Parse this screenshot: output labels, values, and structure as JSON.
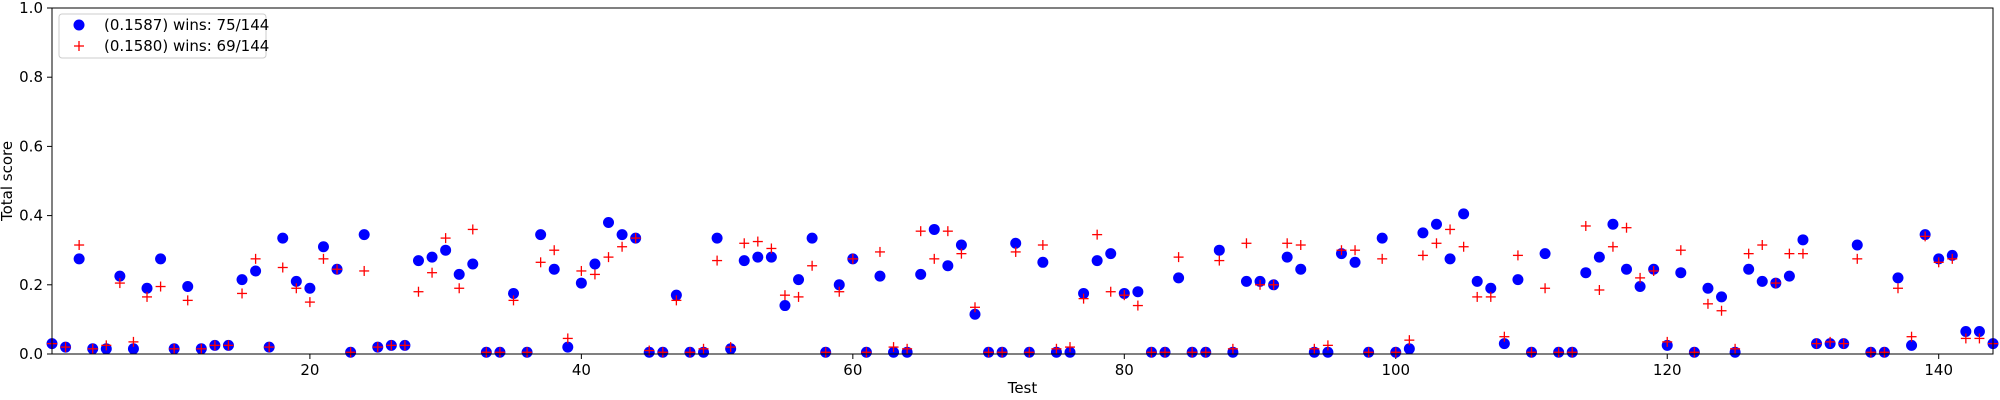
{
  "chart_data": {
    "type": "scatter",
    "title": "",
    "xlabel": "Test",
    "ylabel": "Total score",
    "xlim": [
      1,
      144
    ],
    "ylim": [
      0,
      1.0
    ],
    "xticks": [
      20,
      40,
      60,
      80,
      100,
      120,
      140
    ],
    "xtick_labels": [
      "20",
      "40",
      "60",
      "80",
      "100",
      "120",
      "140"
    ],
    "yticks": [
      0,
      0.2,
      0.4,
      0.6,
      0.8,
      1.0
    ],
    "ytick_labels": [
      "0.0",
      "0.2",
      "0.4",
      "0.6",
      "0.8",
      "1.0"
    ],
    "grid": false,
    "legend_position": "top-left",
    "series": [
      {
        "name": "(0.1587) wins: 75/144",
        "marker": "circle",
        "color": "#0000ff",
        "x": [
          1,
          2,
          3,
          4,
          5,
          6,
          7,
          8,
          9,
          10,
          11,
          12,
          13,
          14,
          15,
          16,
          17,
          18,
          19,
          20,
          21,
          22,
          23,
          24,
          25,
          26,
          27,
          28,
          29,
          30,
          31,
          32,
          33,
          34,
          35,
          36,
          37,
          38,
          39,
          40,
          41,
          42,
          43,
          44,
          45,
          46,
          47,
          48,
          49,
          50,
          51,
          52,
          53,
          54,
          55,
          56,
          57,
          58,
          59,
          60,
          61,
          62,
          63,
          64,
          65,
          66,
          67,
          68,
          69,
          70,
          71,
          72,
          73,
          74,
          75,
          76,
          77,
          78,
          79,
          80,
          81,
          82,
          83,
          84,
          85,
          86,
          87,
          88,
          89,
          90,
          91,
          92,
          93,
          94,
          95,
          96,
          97,
          98,
          99,
          100,
          101,
          102,
          103,
          104,
          105,
          106,
          107,
          108,
          109,
          110,
          111,
          112,
          113,
          114,
          115,
          116,
          117,
          118,
          119,
          120,
          121,
          122,
          123,
          124,
          125,
          126,
          127,
          128,
          129,
          130,
          131,
          132,
          133,
          134,
          135,
          136,
          137,
          138,
          139,
          140,
          141,
          142,
          143,
          144
        ],
        "y": [
          0.03,
          0.02,
          0.275,
          0.015,
          0.015,
          0.225,
          0.015,
          0.19,
          0.275,
          0.015,
          0.195,
          0.015,
          0.025,
          0.025,
          0.215,
          0.24,
          0.02,
          0.335,
          0.21,
          0.19,
          0.31,
          0.245,
          0.005,
          0.345,
          0.02,
          0.025,
          0.025,
          0.27,
          0.28,
          0.3,
          0.23,
          0.26,
          0.005,
          0.005,
          0.175,
          0.005,
          0.345,
          0.245,
          0.02,
          0.205,
          0.26,
          0.38,
          0.345,
          0.335,
          0.005,
          0.005,
          0.17,
          0.005,
          0.005,
          0.335,
          0.015,
          0.27,
          0.28,
          0.28,
          0.14,
          0.215,
          0.335,
          0.005,
          0.2,
          0.275,
          0.005,
          0.225,
          0.005,
          0.005,
          0.23,
          0.36,
          0.255,
          0.315,
          0.115,
          0.005,
          0.005,
          0.32,
          0.005,
          0.265,
          0.005,
          0.005,
          0.175,
          0.27,
          0.29,
          0.175,
          0.18,
          0.005,
          0.005,
          0.22,
          0.005,
          0.005,
          0.3,
          0.005,
          0.21,
          0.21,
          0.2,
          0.28,
          0.245,
          0.005,
          0.005,
          0.29,
          0.265,
          0.005,
          0.335,
          0.005,
          0.015,
          0.35,
          0.375,
          0.275,
          0.405,
          0.21,
          0.19,
          0.03,
          0.215,
          0.005,
          0.29,
          0.005,
          0.005,
          0.235,
          0.28,
          0.375,
          0.245,
          0.195,
          0.245,
          0.025,
          0.235,
          0.005,
          0.19,
          0.165,
          0.005,
          0.245,
          0.21,
          0.205,
          0.225,
          0.33,
          0.03,
          0.03,
          0.03,
          0.315,
          0.005,
          0.005,
          0.22,
          0.025,
          0.345,
          0.275,
          0.285,
          0.065,
          0.065,
          0.03
        ]
      },
      {
        "name": "(0.1580) wins: 69/144",
        "marker": "plus",
        "color": "#ff0000",
        "x": [
          1,
          2,
          3,
          4,
          5,
          6,
          7,
          8,
          9,
          10,
          11,
          12,
          13,
          14,
          15,
          16,
          17,
          18,
          19,
          20,
          21,
          22,
          23,
          24,
          25,
          26,
          27,
          28,
          29,
          30,
          31,
          32,
          33,
          34,
          35,
          36,
          37,
          38,
          39,
          40,
          41,
          42,
          43,
          44,
          45,
          46,
          47,
          48,
          49,
          50,
          51,
          52,
          53,
          54,
          55,
          56,
          57,
          58,
          59,
          60,
          61,
          62,
          63,
          64,
          65,
          66,
          67,
          68,
          69,
          70,
          71,
          72,
          73,
          74,
          75,
          76,
          77,
          78,
          79,
          80,
          81,
          82,
          83,
          84,
          85,
          86,
          87,
          88,
          89,
          90,
          91,
          92,
          93,
          94,
          95,
          96,
          97,
          98,
          99,
          100,
          101,
          102,
          103,
          104,
          105,
          106,
          107,
          108,
          109,
          110,
          111,
          112,
          113,
          114,
          115,
          116,
          117,
          118,
          119,
          120,
          121,
          122,
          123,
          124,
          125,
          126,
          127,
          128,
          129,
          130,
          131,
          132,
          133,
          134,
          135,
          136,
          137,
          138,
          139,
          140,
          141,
          142,
          143,
          144
        ],
        "y": [
          0.03,
          0.02,
          0.315,
          0.015,
          0.025,
          0.205,
          0.035,
          0.165,
          0.195,
          0.015,
          0.155,
          0.015,
          0.025,
          0.025,
          0.175,
          0.275,
          0.02,
          0.25,
          0.19,
          0.15,
          0.275,
          0.245,
          0.005,
          0.24,
          0.02,
          0.025,
          0.025,
          0.18,
          0.235,
          0.335,
          0.19,
          0.36,
          0.005,
          0.005,
          0.155,
          0.005,
          0.265,
          0.3,
          0.045,
          0.24,
          0.23,
          0.28,
          0.31,
          0.335,
          0.01,
          0.005,
          0.155,
          0.005,
          0.015,
          0.27,
          0.02,
          0.32,
          0.325,
          0.305,
          0.17,
          0.165,
          0.255,
          0.005,
          0.18,
          0.275,
          0.005,
          0.295,
          0.02,
          0.015,
          0.355,
          0.275,
          0.355,
          0.29,
          0.135,
          0.005,
          0.005,
          0.295,
          0.005,
          0.315,
          0.015,
          0.02,
          0.16,
          0.345,
          0.18,
          0.17,
          0.14,
          0.005,
          0.005,
          0.28,
          0.005,
          0.005,
          0.27,
          0.015,
          0.32,
          0.2,
          0.2,
          0.32,
          0.315,
          0.015,
          0.025,
          0.3,
          0.3,
          0.005,
          0.275,
          0.005,
          0.04,
          0.285,
          0.32,
          0.36,
          0.31,
          0.165,
          0.165,
          0.05,
          0.285,
          0.005,
          0.19,
          0.005,
          0.005,
          0.37,
          0.185,
          0.31,
          0.365,
          0.22,
          0.24,
          0.035,
          0.3,
          0.005,
          0.145,
          0.125,
          0.015,
          0.29,
          0.315,
          0.205,
          0.29,
          0.29,
          0.03,
          0.035,
          0.03,
          0.275,
          0.005,
          0.005,
          0.19,
          0.05,
          0.34,
          0.265,
          0.275,
          0.045,
          0.045,
          0.03
        ]
      }
    ]
  }
}
